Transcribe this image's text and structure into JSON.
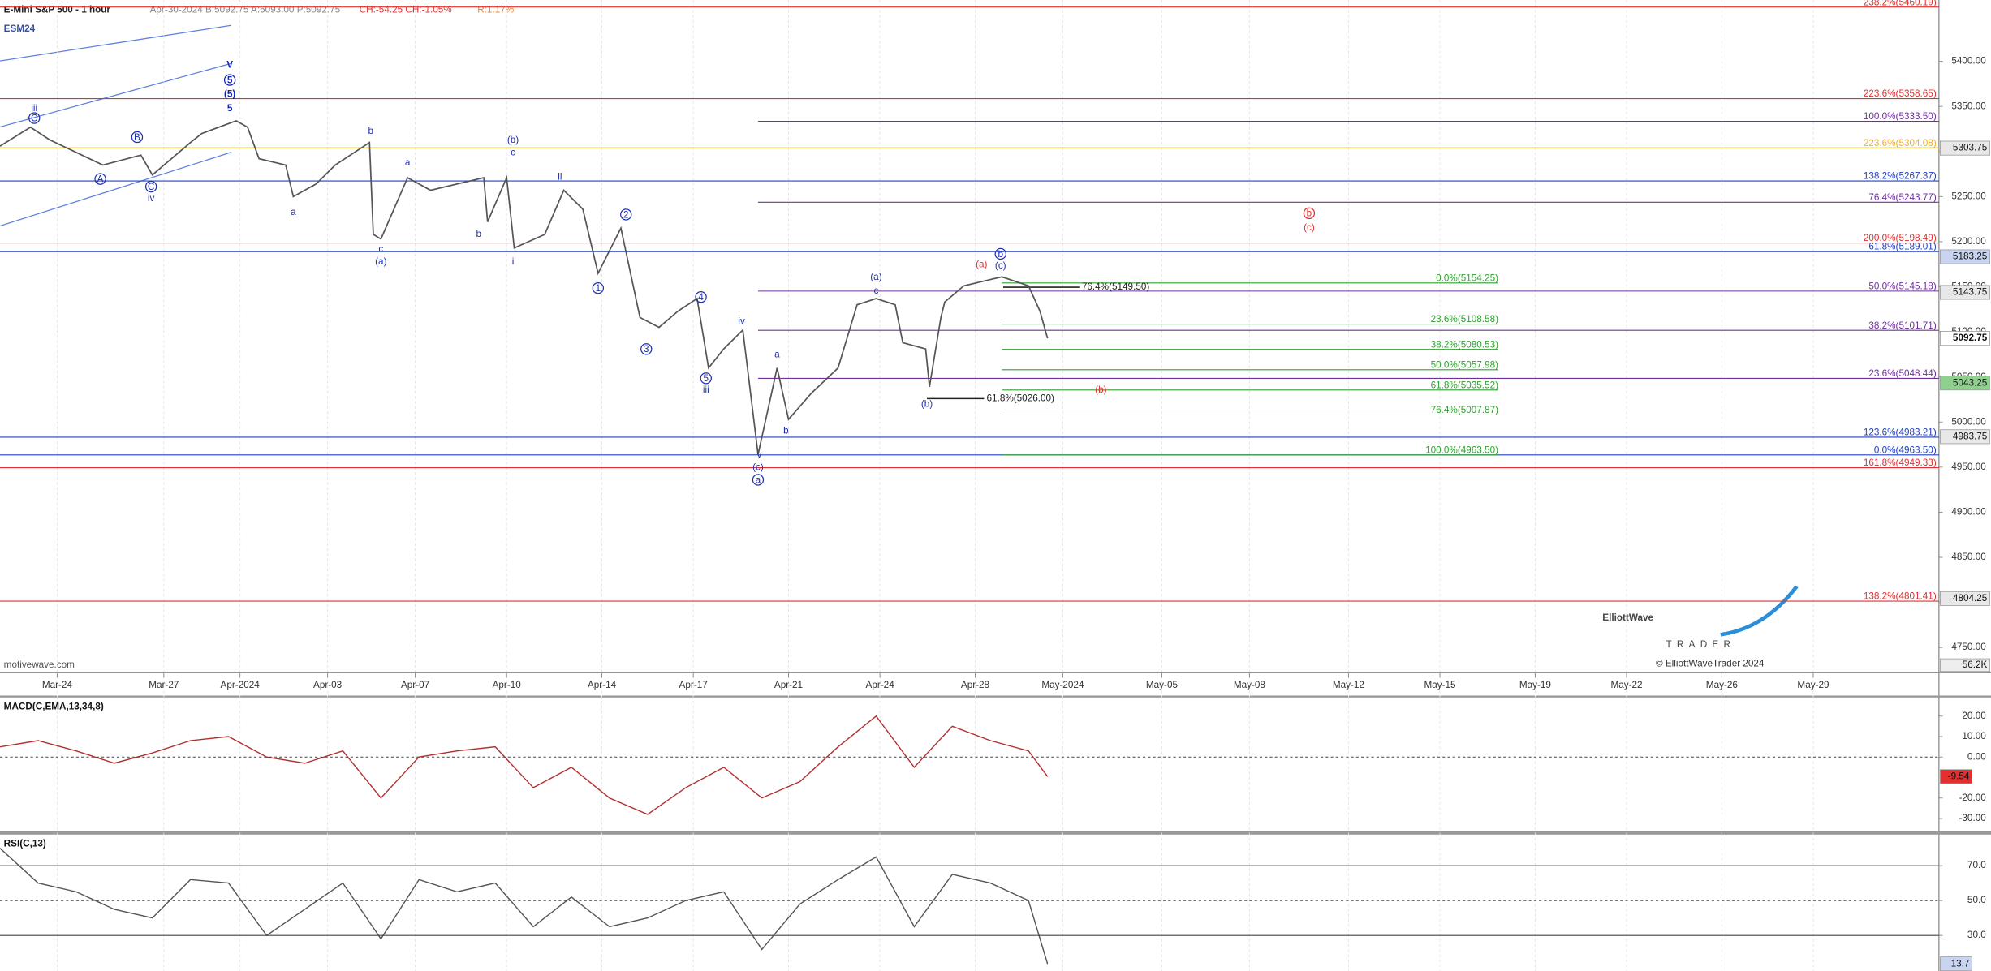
{
  "header": {
    "title": "E-Mini S&P 500 - 1 hour",
    "quote": "Apr-30-2024  B:5092.75  A:5093.00  P:5092.75",
    "change": "CH:-54.25  CH:-1.05%",
    "range": "R:1.17%",
    "ticker": "ESM24",
    "source": "motivewave.com"
  },
  "logo": {
    "name": "ElliottWave",
    "sub": "TRADER",
    "copyright": "© ElliottWaveTrader 2024"
  },
  "chart_data": [
    {
      "type": "line",
      "color": "#555555",
      "xlim": [
        0,
        509
      ],
      "xticks": [
        {
          "value": 15,
          "label": "Mar-24"
        },
        {
          "value": 43,
          "label": "Mar-27"
        },
        {
          "value": 63,
          "label": "Apr-2024"
        },
        {
          "value": 86,
          "label": "Apr-03"
        },
        {
          "value": 109,
          "label": "Apr-07"
        },
        {
          "value": 133,
          "label": "Apr-10"
        },
        {
          "value": 158,
          "label": "Apr-14"
        },
        {
          "value": 182,
          "label": "Apr-17"
        },
        {
          "value": 207,
          "label": "Apr-21"
        },
        {
          "value": 231,
          "label": "Apr-24"
        },
        {
          "value": 256,
          "label": "Apr-28"
        },
        {
          "value": 279,
          "label": "May-2024"
        },
        {
          "value": 305,
          "label": "May-05"
        },
        {
          "value": 328,
          "label": "May-08"
        },
        {
          "value": 354,
          "label": "May-12"
        },
        {
          "value": 378,
          "label": "May-15"
        },
        {
          "value": 403,
          "label": "May-19"
        },
        {
          "value": 427,
          "label": "May-22"
        },
        {
          "value": 452,
          "label": "May-26"
        },
        {
          "value": 476,
          "label": "May-29"
        }
      ],
      "ylim": [
        4722,
        5468
      ],
      "yticks": [
        {
          "value": 4750,
          "label": "4750.00"
        },
        {
          "value": 4800,
          "label": "4800.00"
        },
        {
          "value": 4850,
          "label": "4850.00"
        },
        {
          "value": 4900,
          "label": "4900.00"
        },
        {
          "value": 4950,
          "label": "4950.00"
        },
        {
          "value": 5000,
          "label": "5000.00"
        },
        {
          "value": 5050,
          "label": "5050.00"
        },
        {
          "value": 5100,
          "label": "5100.00"
        },
        {
          "value": 5150,
          "label": "5150.00"
        },
        {
          "value": 5200,
          "label": "5200.00"
        },
        {
          "value": 5250,
          "label": "5250.00"
        },
        {
          "value": 5300,
          "label": "5300.00"
        },
        {
          "value": 5350,
          "label": "5350.00"
        },
        {
          "value": 5400,
          "label": "5400.00"
        }
      ],
      "x": [
        0,
        8,
        13,
        27,
        37,
        40,
        50,
        53,
        62,
        65,
        68,
        75,
        77,
        83,
        88,
        97,
        98,
        100,
        107,
        113,
        127,
        128,
        133,
        135,
        143,
        148,
        153,
        157,
        163,
        168,
        173,
        178,
        183,
        186,
        190,
        195,
        199,
        204,
        207,
        213,
        220,
        225,
        230,
        235,
        237,
        243,
        244,
        247,
        248,
        253,
        260,
        263,
        270,
        273,
        275
      ],
      "values": [
        5306,
        5327,
        5313,
        5285,
        5296,
        5274,
        5310,
        5320,
        5334,
        5327,
        5292,
        5285,
        5250,
        5264,
        5285,
        5310,
        5208,
        5203,
        5271,
        5257,
        5271,
        5222,
        5271,
        5193,
        5208,
        5257,
        5236,
        5165,
        5215,
        5116,
        5105,
        5123,
        5137,
        5060,
        5081,
        5102,
        4964,
        5060,
        5003,
        5032,
        5060,
        5130,
        5137,
        5130,
        5088,
        5081,
        5039,
        5116,
        5133,
        5151,
        5158,
        5161,
        5151,
        5123,
        5092.75
      ],
      "fib_sets": [
        {
          "color": "#e03030",
          "levels": [
            {
              "label": "238.2%(5460.19)",
              "value": 5460.19
            },
            {
              "label": "223.6%(5358.65)",
              "value": 5358.65
            },
            {
              "label": "200.0%(5198.49)",
              "value": 5198.49
            },
            {
              "label": "161.8%(4949.33)",
              "value": 4949.33
            },
            {
              "label": "138.2%(4801.41)",
              "value": 4801.41
            }
          ]
        },
        {
          "color": "#2040c0",
          "levels": [
            {
              "label": "138.2%(5267.37)",
              "value": 5267.37
            },
            {
              "label": "61.8%(5189.01)",
              "value": 5189.01
            },
            {
              "label": "123.6%(4983.21)",
              "value": 4983.21
            },
            {
              "label": "0.0%(4963.50)",
              "value": 4963.5
            }
          ]
        },
        {
          "color": "#7030a0",
          "levels": [
            {
              "label": "100.0%(5333.50)",
              "value": 5333.5
            },
            {
              "label": "76.4%(5243.77)",
              "value": 5243.77
            },
            {
              "label": "50.0%(5145.18)",
              "value": 5145.18
            },
            {
              "label": "38.2%(5101.71)",
              "value": 5101.71
            },
            {
              "label": "23.6%(5048.44)",
              "value": 5048.44
            }
          ]
        },
        {
          "color": "#f0b020",
          "levels": [
            {
              "label": "223.6%(5304.08)",
              "value": 5304.08
            }
          ]
        },
        {
          "color": "#30a030",
          "levels": [
            {
              "label": "0.0%(5154.25)",
              "value": 5154.25
            },
            {
              "label": "23.6%(5108.58)",
              "value": 5108.58
            },
            {
              "label": "38.2%(5080.53)",
              "value": 5080.53
            },
            {
              "label": "50.0%(5057.98)",
              "value": 5057.98
            },
            {
              "label": "61.8%(5035.52)",
              "value": 5035.52
            },
            {
              "label": "76.4%(5007.87)",
              "value": 5007.87
            },
            {
              "label": "100.0%(4963.50)",
              "value": 4963.5
            }
          ]
        },
        {
          "color": "#222222",
          "levels": [
            {
              "label": "76.4%(5149.50)",
              "value": 5149.5
            },
            {
              "label": "61.8%(5026.00)",
              "value": 5026
            }
          ]
        }
      ],
      "price_tags": [
        {
          "value": 5303.75,
          "color": "#e8e8e8"
        },
        {
          "value": 5183.25,
          "color": "#c8d4f0"
        },
        {
          "value": 5143.75,
          "color": "#e8e8e8"
        },
        {
          "value": 5092.75,
          "color": "#ffffff"
        },
        {
          "value": 5043.25,
          "color": "#8fd08f"
        },
        {
          "value": 4983.75,
          "color": "#e8e8e8"
        },
        {
          "value": 4804.25,
          "color": "#e8e8e8"
        }
      ],
      "volume_tag": "56.2K",
      "wave_labels": [
        {
          "text": "iii",
          "color": "#2030b0",
          "circled": false
        },
        {
          "text": "C",
          "color": "#2030b0",
          "circled": true
        },
        {
          "text": "A",
          "color": "#2030b0",
          "circled": true
        },
        {
          "text": "B",
          "color": "#2030b0",
          "circled": true
        },
        {
          "text": "C",
          "color": "#2030b0",
          "circled": true
        },
        {
          "text": "iv",
          "color": "#2030b0",
          "circled": false
        },
        {
          "text": "V",
          "color": "#1020c0",
          "circled": false
        },
        {
          "text": "5",
          "color": "#1020c0",
          "circled": true
        },
        {
          "text": "(5)",
          "color": "#1020c0",
          "circled": false
        },
        {
          "text": "5",
          "color": "#1020c0",
          "circled": false
        },
        {
          "text": "b",
          "color": "#2030b0",
          "circled": false
        },
        {
          "text": "a",
          "color": "#2030b0",
          "circled": false
        },
        {
          "text": "c",
          "color": "#2030b0",
          "circled": false
        },
        {
          "text": "(a)",
          "color": "#2030b0",
          "circled": false
        },
        {
          "text": "a",
          "color": "#2030b0",
          "circled": false
        },
        {
          "text": "b",
          "color": "#2030b0",
          "circled": false
        },
        {
          "text": "(b)",
          "color": "#2030b0",
          "circled": false
        },
        {
          "text": "c",
          "color": "#2030b0",
          "circled": false
        },
        {
          "text": "i",
          "color": "#2030b0",
          "circled": false
        },
        {
          "text": "ii",
          "color": "#2030b0",
          "circled": false
        },
        {
          "text": "1",
          "color": "#2030b0",
          "circled": true
        },
        {
          "text": "2",
          "color": "#2030b0",
          "circled": true
        },
        {
          "text": "3",
          "color": "#2030b0",
          "circled": true
        },
        {
          "text": "4",
          "color": "#2030b0",
          "circled": true
        },
        {
          "text": "iv",
          "color": "#2030b0",
          "circled": false
        },
        {
          "text": "5",
          "color": "#2030b0",
          "circled": true
        },
        {
          "text": "iii",
          "color": "#2030b0",
          "circled": false
        },
        {
          "text": "a",
          "color": "#2030b0",
          "circled": false
        },
        {
          "text": "b",
          "color": "#2030b0",
          "circled": false
        },
        {
          "text": "v",
          "color": "#2030b0",
          "circled": false
        },
        {
          "text": "(c)",
          "color": "#2030b0",
          "circled": false
        },
        {
          "text": "a",
          "color": "#2030b0",
          "circled": true
        },
        {
          "text": "(a)",
          "color": "#2030b0",
          "circled": false
        },
        {
          "text": "c",
          "color": "#2030b0",
          "circled": false
        },
        {
          "text": "(b)",
          "color": "#2030b0",
          "circled": false
        },
        {
          "text": "b",
          "color": "#2030b0",
          "circled": true
        },
        {
          "text": "(c)",
          "color": "#2030b0",
          "circled": false
        },
        {
          "text": "(a)",
          "color": "#e03030",
          "circled": false
        },
        {
          "text": "(b)",
          "color": "#e03030",
          "circled": false
        },
        {
          "text": "b",
          "color": "#e03030",
          "circled": true
        },
        {
          "text": "(c)",
          "color": "#e03030",
          "circled": false
        }
      ]
    },
    {
      "type": "line",
      "title": "MACD(C,EMA,13,34,8)",
      "color": "#b03030",
      "xlim": [
        0,
        509
      ],
      "x": [
        0,
        10,
        20,
        30,
        40,
        50,
        60,
        70,
        80,
        90,
        100,
        110,
        120,
        130,
        140,
        150,
        160,
        170,
        180,
        190,
        200,
        210,
        220,
        230,
        240,
        250,
        260,
        270,
        275
      ],
      "values": [
        5,
        8,
        3,
        -3,
        2,
        8,
        10,
        0,
        -3,
        3,
        -20,
        0,
        3,
        5,
        -15,
        -5,
        -20,
        -28,
        -15,
        -5,
        -20,
        -12,
        5,
        20,
        -5,
        15,
        8,
        3,
        -9.54
      ],
      "ylim": [
        -36.3,
        29.4
      ],
      "yticks": [
        {
          "value": 20,
          "label": "20.00"
        },
        {
          "value": 10,
          "label": "10.00"
        },
        {
          "value": 0,
          "label": "0.00"
        },
        {
          "value": -20,
          "label": "-20.00"
        },
        {
          "value": -30,
          "label": "-30.00"
        }
      ],
      "last_tag": -9.54,
      "tag_color": "#e03030"
    },
    {
      "type": "line",
      "title": "RSI(C,13)",
      "color": "#555555",
      "xlim": [
        0,
        509
      ],
      "x": [
        0,
        10,
        20,
        30,
        40,
        50,
        60,
        70,
        80,
        90,
        100,
        110,
        120,
        130,
        140,
        150,
        160,
        170,
        180,
        190,
        200,
        210,
        220,
        230,
        240,
        250,
        260,
        270,
        275
      ],
      "values": [
        80,
        60,
        55,
        45,
        40,
        62,
        60,
        30,
        45,
        60,
        28,
        62,
        55,
        60,
        35,
        52,
        35,
        40,
        50,
        55,
        22,
        48,
        62,
        75,
        35,
        65,
        60,
        50,
        13.7
      ],
      "ylim": [
        9.6,
        88.2
      ],
      "yticks": [
        {
          "value": 70,
          "label": "70.0"
        },
        {
          "value": 50,
          "label": "50.0"
        },
        {
          "value": 30,
          "label": "30.0"
        }
      ],
      "last_tag": 13.7,
      "tag_color": "#c8d4f0"
    }
  ]
}
